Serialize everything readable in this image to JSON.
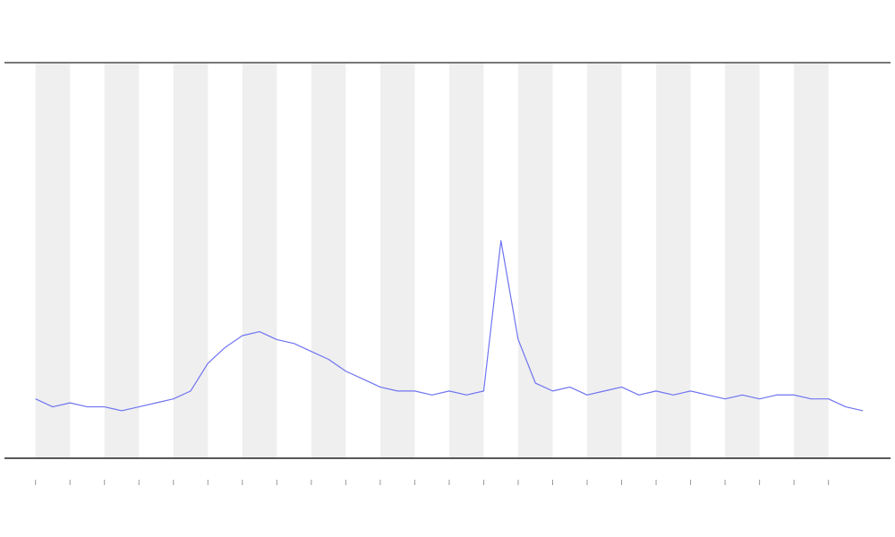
{
  "chart_data": {
    "type": "line",
    "x": [
      0,
      0.5,
      1,
      1.5,
      2,
      2.5,
      3,
      3.5,
      4,
      4.5,
      5,
      5.5,
      6,
      6.5,
      7,
      7.5,
      8,
      8.5,
      9,
      9.5,
      10,
      10.5,
      11,
      11.5,
      12,
      12.5,
      13,
      13.5,
      14,
      14.5,
      15,
      15.5,
      16,
      16.5,
      17,
      17.5,
      18,
      18.5,
      19,
      19.5,
      20,
      20.5,
      21,
      21.5,
      22,
      22.5,
      23,
      23.5,
      24
    ],
    "series": [
      {
        "color": "#6f74f0",
        "values": [
          15,
          13,
          14,
          13,
          13,
          12,
          13,
          14,
          15,
          17,
          24,
          28,
          31,
          32,
          30,
          29,
          27,
          25,
          22,
          20,
          18,
          17,
          17,
          16,
          17,
          16,
          17,
          55,
          30,
          19,
          17,
          18,
          16,
          17,
          18,
          16,
          17,
          16,
          17,
          16,
          15,
          16,
          15,
          16,
          16,
          15,
          15,
          13,
          12
        ]
      }
    ],
    "xlim": [
      -0.9,
      24.8
    ],
    "ylim": [
      0,
      100
    ],
    "xticks": [
      0,
      1,
      2,
      3,
      4,
      5,
      6,
      7,
      8,
      9,
      10,
      11,
      12,
      13,
      14,
      15,
      16,
      17,
      18,
      19,
      20,
      21,
      22,
      23
    ],
    "shaded_bands": true
  }
}
